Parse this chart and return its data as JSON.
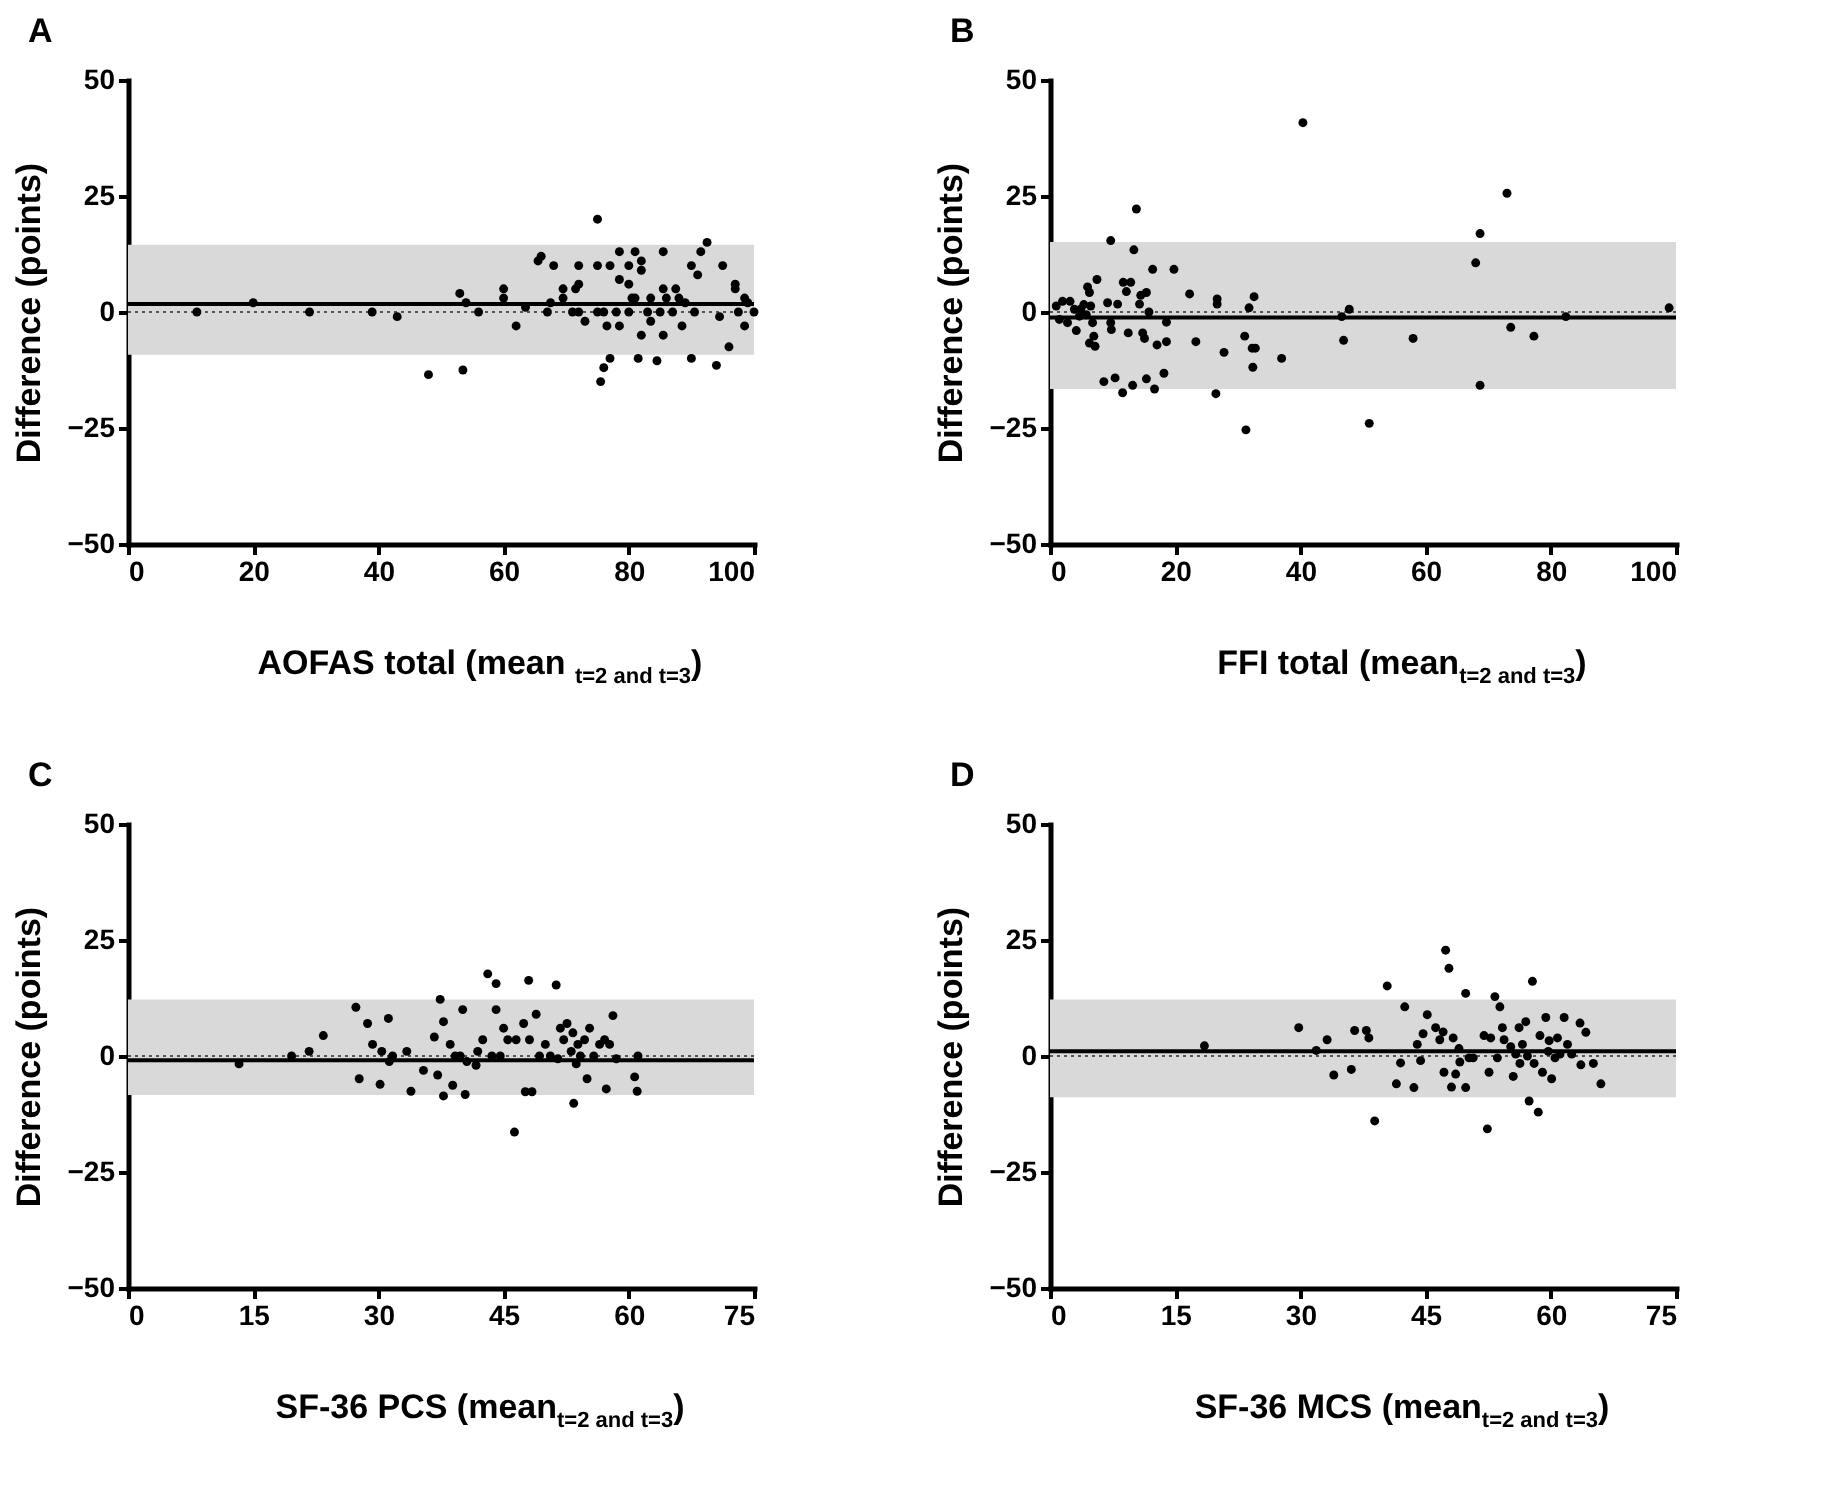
{
  "chart_data": [
    {
      "type": "scatter",
      "title": "A",
      "xlabel": "AOFAS total (mean $_{t=2 and t=3}$)",
      "ylabel": "Difference (points)",
      "xlim": [
        0,
        100
      ],
      "ylim": [
        -50,
        50
      ],
      "xticks": [
        0,
        20,
        40,
        60,
        80,
        100
      ],
      "yticks": [
        -50,
        -25,
        0,
        25,
        50
      ],
      "marker": "circle",
      "x": [
        11,
        20,
        29,
        39,
        43,
        48,
        53,
        53.5,
        54,
        56,
        60,
        60,
        62,
        63.5,
        65.5,
        66,
        67,
        67.5,
        68,
        69.5,
        69.5,
        71,
        71.5,
        72,
        72,
        72,
        73,
        75,
        75,
        75,
        75.5,
        76,
        76,
        76.5,
        77,
        77,
        78,
        78.5,
        78.5,
        78.5,
        80,
        80,
        80,
        80.5,
        81,
        81,
        81.5,
        82,
        82,
        82,
        83,
        83.5,
        83.5,
        84.5,
        85,
        85.5,
        85.5,
        85.5,
        86,
        87,
        87.5,
        88,
        88.5,
        89,
        90,
        90,
        90.5,
        91,
        91.5,
        92.5,
        94,
        94.5,
        95,
        96,
        97,
        97,
        97.5,
        98.5,
        98.5,
        99,
        100
      ],
      "series": [
        {
          "color": "#000000",
          "values": [
            0,
            2,
            0,
            0,
            -1,
            -13.5,
            4,
            -12.5,
            2,
            0,
            5,
            3,
            -3,
            1,
            11,
            12,
            0,
            2,
            10,
            5,
            3,
            0,
            5,
            6,
            10,
            0,
            -2,
            20,
            10,
            0,
            -15,
            -12,
            0,
            -3,
            10,
            -10,
            0,
            13,
            7,
            -3,
            10,
            6,
            0,
            3,
            13,
            3,
            -10,
            11,
            9,
            -5,
            0,
            3,
            -2,
            -10.5,
            0,
            13,
            5,
            -5,
            3,
            0,
            5,
            3,
            -3,
            2,
            10,
            -10,
            0,
            8,
            13,
            15,
            -11.5,
            -1,
            10,
            -7.5,
            6,
            5,
            0,
            -3,
            3,
            2,
            0
          ]
        }
      ],
      "ref_lines": [
        {
          "axis": "y",
          "value": 1.7,
          "line_style": "solid",
          "color": "#000000"
        },
        {
          "axis": "y",
          "value": 0,
          "line_style": "dotted",
          "color": "#555555"
        }
      ],
      "bands": [
        {
          "axis": "y",
          "from": -9.2,
          "to": 14.5,
          "color": "#d9d9d9"
        }
      ]
    },
    {
      "type": "scatter",
      "title": "B",
      "xlabel": "FFI total (mean$_{t=2 and t=3}$)",
      "ylabel": "Difference (points)",
      "xlim": [
        0,
        100
      ],
      "ylim": [
        -50,
        50
      ],
      "xticks": [
        0,
        20,
        40,
        60,
        80,
        100
      ],
      "yticks": [
        -50,
        -25,
        0,
        25,
        50
      ],
      "marker": "circle",
      "x": [
        1,
        1.5,
        2,
        2.8,
        3.2,
        3.9,
        4.2,
        4.7,
        4.9,
        5.4,
        5.8,
        6,
        6.3,
        6.3,
        6.5,
        6.8,
        7,
        7.2,
        7.5,
        8.6,
        9.2,
        9.7,
        9.7,
        9.8,
        10.4,
        10.8,
        11.6,
        11.7,
        12.2,
        12.5,
        12.9,
        13.2,
        13.4,
        13.8,
        14.3,
        14.5,
        14.8,
        15.1,
        15.4,
        15.4,
        15.8,
        16.4,
        16.7,
        17.1,
        18.2,
        18.6,
        18.6,
        19.8,
        22.3,
        23.3,
        26.5,
        26.7,
        26.7,
        27.8,
        31.1,
        31.3,
        31.8,
        32.3,
        32.4,
        32.6,
        32.8,
        37,
        40.4,
        46.6,
        46.9,
        47.8,
        51,
        58,
        68,
        68.7,
        68.7,
        73,
        73.6,
        77.3,
        82.4,
        98.9
      ],
      "series": [
        {
          "color": "#000000",
          "values": [
            1.3,
            -1.6,
            2.3,
            -2.3,
            2.3,
            0.6,
            -4,
            -0.9,
            0.6,
            1.6,
            -0.6,
            5.4,
            4.2,
            -6.7,
            1.3,
            -2.3,
            -5.2,
            -7.4,
            7,
            -15,
            2,
            15.4,
            -2.3,
            -3.8,
            -14.2,
            1.7,
            -17.4,
            6.4,
            4.4,
            -4.5,
            6.4,
            -15.8,
            13.4,
            22.2,
            1.7,
            3.6,
            -4.5,
            -5.7,
            -14.4,
            4.2,
            0,
            9.2,
            -16.6,
            -7.1,
            -13.2,
            -2.2,
            -6.4,
            9.2,
            3.9,
            -6.4,
            -17.6,
            2.8,
            1.7,
            -8.7,
            -5.2,
            -25.4,
            0.9,
            -7.8,
            -11.9,
            3.3,
            -7.8,
            -10,
            40.8,
            -1,
            -6.1,
            0.6,
            -24,
            -5.7,
            10.6,
            16.9,
            -15.8,
            25.6,
            -3.3,
            -5.2,
            -1,
            0.9
          ]
        }
      ],
      "ref_lines": [
        {
          "axis": "y",
          "value": -1.2,
          "line_style": "solid",
          "color": "#000000"
        },
        {
          "axis": "y",
          "value": 0,
          "line_style": "dotted",
          "color": "#555555"
        }
      ],
      "bands": [
        {
          "axis": "y",
          "from": -16.6,
          "to": 15.1,
          "color": "#d9d9d9"
        }
      ]
    },
    {
      "type": "scatter",
      "title": "C",
      "xlabel": "SF-36 PCS (mean$_{t=2 and t=3}$)",
      "ylabel": "Difference (points)",
      "xlim": [
        0,
        75
      ],
      "ylim": [
        -50,
        50
      ],
      "xticks": [
        0,
        15,
        30,
        45,
        60,
        75
      ],
      "yticks": [
        -50,
        -25,
        0,
        25,
        50
      ],
      "marker": "circle",
      "x": [
        13.3,
        19.6,
        21.7,
        23.4,
        27.3,
        27.7,
        28.7,
        29.3,
        30.2,
        30.4,
        31.2,
        31.3,
        31.7,
        33.4,
        33.9,
        35.4,
        36.7,
        37.1,
        37.4,
        37.8,
        37.8,
        38.6,
        38.9,
        39.2,
        39.8,
        40.1,
        40.4,
        40.6,
        41.7,
        41.9,
        42.5,
        43.1,
        43.6,
        44.1,
        44.1,
        44.6,
        45,
        45.5,
        46.3,
        46.5,
        47.4,
        47.6,
        48,
        48.1,
        48.4,
        48.9,
        49.3,
        50,
        50.6,
        51.3,
        51.5,
        51.8,
        52.2,
        52.6,
        53.1,
        53.3,
        53.4,
        53.7,
        53.9,
        54.2,
        54.7,
        55,
        55.3,
        55.8,
        56.5,
        57.1,
        57.3,
        57.7,
        58.1,
        58.5,
        60.7,
        61,
        61.1
      ],
      "series": [
        {
          "color": "#000000",
          "values": [
            -1.7,
            0,
            1,
            4.4,
            10.5,
            -4.9,
            7,
            2.5,
            -6.1,
            1,
            8.1,
            -1.2,
            0,
            1,
            -7.6,
            -3.1,
            4.1,
            -4.1,
            12.2,
            -8.6,
            7.4,
            2.5,
            -6.3,
            0,
            0,
            10,
            -8.3,
            -1.2,
            -2,
            1,
            3.5,
            17.7,
            0,
            15.6,
            10,
            0,
            6,
            3.5,
            -16.4,
            3.5,
            7,
            -7.7,
            16.3,
            3.5,
            -7.7,
            9,
            0,
            2.5,
            0,
            15.3,
            -0.6,
            6,
            3.5,
            7,
            1,
            5,
            -10.2,
            -1.7,
            2.5,
            0,
            3.5,
            -4.9,
            6,
            0,
            2.5,
            3.5,
            -7.1,
            2.5,
            8.7,
            -0.6,
            -4.5,
            -7.6,
            0
          ]
        }
      ],
      "ref_lines": [
        {
          "axis": "y",
          "value": -0.9,
          "line_style": "solid",
          "color": "#000000"
        },
        {
          "axis": "y",
          "value": 0,
          "line_style": "dotted",
          "color": "#555555"
        }
      ],
      "bands": [
        {
          "axis": "y",
          "from": -8.4,
          "to": 12.2,
          "color": "#d9d9d9"
        }
      ]
    },
    {
      "type": "scatter",
      "title": "D",
      "xlabel": "SF-36 MCS (mean$_{t=2 and t=3}$)",
      "ylabel": "Difference (points)",
      "xlim": [
        0,
        75
      ],
      "ylim": [
        -50,
        50
      ],
      "xticks": [
        0,
        15,
        30,
        45,
        60,
        75
      ],
      "yticks": [
        -50,
        -25,
        0,
        25,
        50
      ],
      "marker": "circle",
      "x": [
        18.5,
        29.8,
        31.9,
        33.2,
        34,
        36.1,
        36.5,
        37.9,
        38.2,
        38.9,
        40.4,
        41.5,
        42,
        42.5,
        43.6,
        44,
        44.4,
        44.7,
        45.2,
        46.2,
        46.7,
        47.1,
        47.2,
        47.4,
        47.8,
        48.1,
        48.3,
        48.6,
        49,
        49.1,
        49.8,
        49.8,
        50.2,
        50.7,
        52,
        52.4,
        52.6,
        52.8,
        53.3,
        53.6,
        53.9,
        54.2,
        54.4,
        55.2,
        55.5,
        55.8,
        56.2,
        56.3,
        56.6,
        57,
        57.2,
        57.4,
        57.8,
        58,
        58.5,
        58.7,
        59,
        59.4,
        59.7,
        59.8,
        60.1,
        60.5,
        60.8,
        61.1,
        61.6,
        62,
        62.5,
        63.5,
        63.6,
        64.2,
        65.1,
        66
      ],
      "series": [
        {
          "color": "#000000",
          "values": [
            2.2,
            6.1,
            1.2,
            3.5,
            -4.1,
            -2.9,
            5.5,
            5.5,
            3.9,
            -14,
            15.1,
            -6,
            -1.5,
            10.6,
            -6.8,
            2.5,
            -1,
            4.8,
            8.9,
            6.1,
            3.5,
            5.2,
            -3.5,
            22.8,
            18.9,
            -6.7,
            3.9,
            -3.9,
            1.6,
            -1.3,
            13.5,
            -6.8,
            -0.4,
            -0.4,
            4.4,
            -15.7,
            -3.5,
            3.9,
            12.8,
            -0.4,
            10.6,
            6.1,
            3.5,
            2,
            -4.4,
            0.4,
            6.1,
            -1.6,
            2.5,
            7.4,
            0,
            -9.7,
            16.1,
            -1.6,
            -12.1,
            4.4,
            -3.5,
            8.3,
            1,
            3.3,
            -4.9,
            -0.4,
            3.9,
            0.4,
            8.3,
            2.5,
            0.4,
            7.1,
            -1.9,
            5.1,
            -1.6,
            -6
          ]
        }
      ],
      "ref_lines": [
        {
          "axis": "y",
          "value": 1.0,
          "line_style": "solid",
          "color": "#000000"
        },
        {
          "axis": "y",
          "value": 0,
          "line_style": "dotted",
          "color": "#555555"
        }
      ],
      "bands": [
        {
          "axis": "y",
          "from": -8.9,
          "to": 12.2,
          "color": "#d9d9d9"
        }
      ]
    }
  ]
}
